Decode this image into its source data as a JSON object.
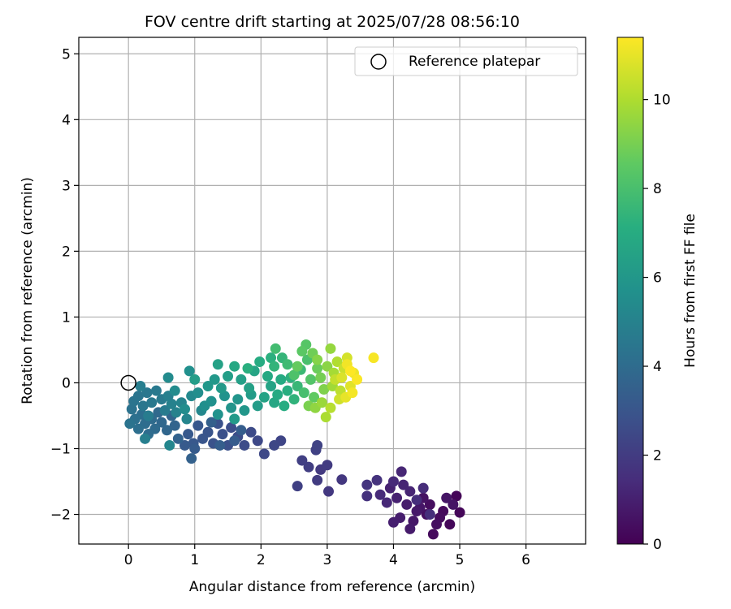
{
  "chart_data": {
    "type": "scatter",
    "title": "FOV centre drift starting at 2025/07/28 08:56:10",
    "xlabel": "Angular distance from reference (arcmin)",
    "ylabel": "Rotation from reference (arcmin)",
    "xlim": [
      -0.75,
      6.9
    ],
    "ylim": [
      -2.45,
      5.25
    ],
    "xticks": [
      0,
      1,
      2,
      3,
      4,
      5,
      6
    ],
    "yticks": [
      -2,
      -1,
      0,
      1,
      2,
      3,
      4,
      5
    ],
    "grid": true,
    "legend": {
      "placement": "top-right",
      "entries": [
        "Reference platepar"
      ]
    },
    "reference_point": {
      "x": 0,
      "y": 0,
      "label": "Reference platepar"
    },
    "colorbar": {
      "label": "Hours from first FF file",
      "colormap": "viridis",
      "range": [
        0,
        11.4
      ],
      "ticks": [
        0,
        2,
        4,
        6,
        8,
        10
      ]
    },
    "points": [
      {
        "x": 4.95,
        "y": -1.72,
        "h": 0.1
      },
      {
        "x": 5.0,
        "y": -1.97,
        "h": 0.15
      },
      {
        "x": 4.85,
        "y": -2.15,
        "h": 0.2
      },
      {
        "x": 4.75,
        "y": -1.95,
        "h": 0.25
      },
      {
        "x": 4.6,
        "y": -2.3,
        "h": 0.3
      },
      {
        "x": 4.7,
        "y": -2.05,
        "h": 0.35
      },
      {
        "x": 4.55,
        "y": -1.85,
        "h": 0.4
      },
      {
        "x": 4.65,
        "y": -2.15,
        "h": 0.45
      },
      {
        "x": 4.5,
        "y": -2.0,
        "h": 0.5
      },
      {
        "x": 4.45,
        "y": -1.75,
        "h": 0.55
      },
      {
        "x": 4.9,
        "y": -1.85,
        "h": 0.6
      },
      {
        "x": 4.8,
        "y": -1.75,
        "h": 0.65
      },
      {
        "x": 4.4,
        "y": -1.9,
        "h": 0.7
      },
      {
        "x": 4.3,
        "y": -2.1,
        "h": 0.75
      },
      {
        "x": 4.35,
        "y": -1.95,
        "h": 0.8
      },
      {
        "x": 4.25,
        "y": -2.22,
        "h": 0.85
      },
      {
        "x": 4.2,
        "y": -1.85,
        "h": 0.9
      },
      {
        "x": 4.1,
        "y": -2.05,
        "h": 0.95
      },
      {
        "x": 4.0,
        "y": -2.12,
        "h": 1.0
      },
      {
        "x": 4.05,
        "y": -1.75,
        "h": 1.05
      },
      {
        "x": 3.95,
        "y": -1.6,
        "h": 1.1
      },
      {
        "x": 4.15,
        "y": -1.55,
        "h": 1.15
      },
      {
        "x": 4.25,
        "y": -1.65,
        "h": 1.2
      },
      {
        "x": 4.12,
        "y": -1.35,
        "h": 1.25
      },
      {
        "x": 3.9,
        "y": -1.82,
        "h": 1.3
      },
      {
        "x": 4.0,
        "y": -1.5,
        "h": 1.35
      },
      {
        "x": 3.8,
        "y": -1.7,
        "h": 1.4
      },
      {
        "x": 4.45,
        "y": -1.6,
        "h": 1.45
      },
      {
        "x": 4.35,
        "y": -1.78,
        "h": 1.5
      },
      {
        "x": 4.55,
        "y": -2.0,
        "h": 1.55
      },
      {
        "x": 3.6,
        "y": -1.72,
        "h": 1.65
      },
      {
        "x": 3.75,
        "y": -1.48,
        "h": 1.7
      },
      {
        "x": 3.6,
        "y": -1.55,
        "h": 1.75
      },
      {
        "x": 3.22,
        "y": -1.47,
        "h": 1.85
      },
      {
        "x": 3.02,
        "y": -1.65,
        "h": 1.9
      },
      {
        "x": 2.9,
        "y": -1.32,
        "h": 1.95
      },
      {
        "x": 3.0,
        "y": -1.25,
        "h": 2.0
      },
      {
        "x": 2.85,
        "y": -1.48,
        "h": 2.05
      },
      {
        "x": 2.72,
        "y": -1.28,
        "h": 2.1
      },
      {
        "x": 2.62,
        "y": -1.18,
        "h": 2.15
      },
      {
        "x": 2.55,
        "y": -1.57,
        "h": 2.2
      },
      {
        "x": 2.83,
        "y": -1.02,
        "h": 2.25
      },
      {
        "x": 2.85,
        "y": -0.95,
        "h": 2.3
      },
      {
        "x": 2.3,
        "y": -0.88,
        "h": 2.4
      },
      {
        "x": 2.2,
        "y": -0.95,
        "h": 2.45
      },
      {
        "x": 2.05,
        "y": -1.08,
        "h": 2.5
      },
      {
        "x": 1.95,
        "y": -0.88,
        "h": 2.55
      },
      {
        "x": 1.85,
        "y": -0.75,
        "h": 2.6
      },
      {
        "x": 1.75,
        "y": -0.95,
        "h": 2.65
      },
      {
        "x": 1.65,
        "y": -0.82,
        "h": 2.7
      },
      {
        "x": 1.55,
        "y": -0.68,
        "h": 2.75
      },
      {
        "x": 1.5,
        "y": -0.95,
        "h": 2.8
      },
      {
        "x": 1.42,
        "y": -0.78,
        "h": 2.85
      },
      {
        "x": 1.35,
        "y": -0.62,
        "h": 2.9
      },
      {
        "x": 1.28,
        "y": -0.92,
        "h": 2.95
      },
      {
        "x": 1.2,
        "y": -0.75,
        "h": 3.0
      },
      {
        "x": 1.12,
        "y": -0.85,
        "h": 3.05
      },
      {
        "x": 1.05,
        "y": -0.65,
        "h": 3.1
      },
      {
        "x": 0.98,
        "y": -0.92,
        "h": 3.15
      },
      {
        "x": 0.9,
        "y": -0.78,
        "h": 3.2
      },
      {
        "x": 0.85,
        "y": -0.95,
        "h": 3.25
      },
      {
        "x": 1.0,
        "y": -1.0,
        "h": 3.3
      },
      {
        "x": 1.6,
        "y": -0.88,
        "h": 3.35
      },
      {
        "x": 1.7,
        "y": -0.72,
        "h": 3.4
      },
      {
        "x": 1.38,
        "y": -0.95,
        "h": 3.45
      },
      {
        "x": 1.25,
        "y": -0.6,
        "h": 3.5
      },
      {
        "x": 0.95,
        "y": -1.15,
        "h": 3.55
      },
      {
        "x": 0.75,
        "y": -0.85,
        "h": 3.6
      },
      {
        "x": 0.7,
        "y": -0.65,
        "h": 3.7
      },
      {
        "x": 0.65,
        "y": -0.5,
        "h": 3.75
      },
      {
        "x": 0.58,
        "y": -0.72,
        "h": 3.8
      },
      {
        "x": 0.5,
        "y": -0.6,
        "h": 3.85
      },
      {
        "x": 0.45,
        "y": -0.45,
        "h": 3.9
      },
      {
        "x": 0.4,
        "y": -0.7,
        "h": 3.95
      },
      {
        "x": 0.35,
        "y": -0.55,
        "h": 4.0
      },
      {
        "x": 0.3,
        "y": -0.78,
        "h": 4.05
      },
      {
        "x": 0.25,
        "y": -0.62,
        "h": 4.1
      },
      {
        "x": 0.2,
        "y": -0.48,
        "h": 4.15
      },
      {
        "x": 0.15,
        "y": -0.7,
        "h": 4.2
      },
      {
        "x": 0.1,
        "y": -0.55,
        "h": 4.25
      },
      {
        "x": 0.05,
        "y": -0.4,
        "h": 4.3
      },
      {
        "x": 0.02,
        "y": -0.62,
        "h": 4.35
      },
      {
        "x": 0.08,
        "y": -0.28,
        "h": 4.4
      },
      {
        "x": 0.15,
        "y": -0.2,
        "h": 4.45
      },
      {
        "x": 0.22,
        "y": -0.35,
        "h": 4.5
      },
      {
        "x": 0.28,
        "y": -0.15,
        "h": 4.55
      },
      {
        "x": 0.35,
        "y": -0.3,
        "h": 4.6
      },
      {
        "x": 0.42,
        "y": -0.12,
        "h": 4.65
      },
      {
        "x": 0.5,
        "y": -0.25,
        "h": 4.7
      },
      {
        "x": 0.55,
        "y": -0.42,
        "h": 4.75
      },
      {
        "x": 0.3,
        "y": -0.5,
        "h": 4.8
      },
      {
        "x": 0.18,
        "y": -0.05,
        "h": 4.85
      },
      {
        "x": 0.25,
        "y": -0.85,
        "h": 4.9
      },
      {
        "x": 0.6,
        "y": -0.2,
        "h": 4.95
      },
      {
        "x": 0.65,
        "y": -0.32,
        "h": 5.0
      },
      {
        "x": 0.72,
        "y": -0.45,
        "h": 5.05
      },
      {
        "x": 0.8,
        "y": -0.3,
        "h": 5.15
      },
      {
        "x": 0.88,
        "y": -0.55,
        "h": 5.2
      },
      {
        "x": 0.62,
        "y": -0.95,
        "h": 5.25
      },
      {
        "x": 1.1,
        "y": -0.42,
        "h": 5.3
      },
      {
        "x": 0.95,
        "y": -0.2,
        "h": 5.4
      },
      {
        "x": 0.6,
        "y": 0.08,
        "h": 5.45
      },
      {
        "x": 0.7,
        "y": -0.12,
        "h": 5.5
      },
      {
        "x": 0.85,
        "y": -0.4,
        "h": 5.55
      },
      {
        "x": 1.05,
        "y": -0.15,
        "h": 5.6
      },
      {
        "x": 1.15,
        "y": -0.35,
        "h": 5.65
      },
      {
        "x": 0.92,
        "y": 0.18,
        "h": 5.7
      },
      {
        "x": 1.25,
        "y": -0.28,
        "h": 5.75
      },
      {
        "x": 1.35,
        "y": -0.48,
        "h": 5.8
      },
      {
        "x": 1.45,
        "y": -0.2,
        "h": 5.85
      },
      {
        "x": 1.55,
        "y": -0.38,
        "h": 5.9
      },
      {
        "x": 1.65,
        "y": -0.25,
        "h": 5.95
      },
      {
        "x": 1.75,
        "y": -0.42,
        "h": 6.0
      },
      {
        "x": 1.2,
        "y": -0.05,
        "h": 6.05
      },
      {
        "x": 1.3,
        "y": 0.05,
        "h": 6.1
      },
      {
        "x": 1.4,
        "y": -0.08,
        "h": 6.15
      },
      {
        "x": 1.6,
        "y": -0.55,
        "h": 6.2
      },
      {
        "x": 1.85,
        "y": -0.18,
        "h": 6.25
      },
      {
        "x": 1.95,
        "y": -0.35,
        "h": 6.3
      },
      {
        "x": 1.0,
        "y": 0.05,
        "h": 6.35
      },
      {
        "x": 1.5,
        "y": 0.1,
        "h": 6.4
      },
      {
        "x": 1.7,
        "y": 0.05,
        "h": 6.45
      },
      {
        "x": 1.82,
        "y": -0.08,
        "h": 6.5
      },
      {
        "x": 1.35,
        "y": 0.28,
        "h": 6.55
      },
      {
        "x": 2.05,
        "y": -0.22,
        "h": 6.6
      },
      {
        "x": 2.15,
        "y": -0.05,
        "h": 6.65
      },
      {
        "x": 1.9,
        "y": 0.18,
        "h": 6.7
      },
      {
        "x": 2.2,
        "y": -0.3,
        "h": 6.8
      },
      {
        "x": 1.6,
        "y": 0.25,
        "h": 6.85
      },
      {
        "x": 2.1,
        "y": 0.1,
        "h": 6.9
      },
      {
        "x": 2.25,
        "y": -0.18,
        "h": 6.95
      },
      {
        "x": 2.3,
        "y": 0.05,
        "h": 7.0
      },
      {
        "x": 1.98,
        "y": 0.32,
        "h": 7.05
      },
      {
        "x": 2.35,
        "y": -0.35,
        "h": 7.1
      },
      {
        "x": 2.4,
        "y": -0.12,
        "h": 7.15
      },
      {
        "x": 1.8,
        "y": 0.22,
        "h": 7.2
      },
      {
        "x": 2.15,
        "y": 0.38,
        "h": 7.25
      },
      {
        "x": 2.45,
        "y": 0.08,
        "h": 7.3
      },
      {
        "x": 2.5,
        "y": -0.25,
        "h": 7.4
      },
      {
        "x": 2.2,
        "y": 0.25,
        "h": 7.45
      },
      {
        "x": 2.32,
        "y": 0.38,
        "h": 7.5
      },
      {
        "x": 2.55,
        "y": -0.05,
        "h": 7.6
      },
      {
        "x": 2.6,
        "y": 0.2,
        "h": 7.7
      },
      {
        "x": 2.4,
        "y": 0.28,
        "h": 7.8
      },
      {
        "x": 2.22,
        "y": 0.52,
        "h": 7.9
      },
      {
        "x": 2.65,
        "y": -0.15,
        "h": 8.0
      },
      {
        "x": 2.7,
        "y": 0.35,
        "h": 8.1
      },
      {
        "x": 2.5,
        "y": 0.12,
        "h": 8.2
      },
      {
        "x": 2.75,
        "y": 0.05,
        "h": 8.3
      },
      {
        "x": 2.68,
        "y": 0.58,
        "h": 8.4
      },
      {
        "x": 2.62,
        "y": 0.48,
        "h": 8.5
      },
      {
        "x": 2.8,
        "y": -0.22,
        "h": 8.6
      },
      {
        "x": 2.55,
        "y": 0.25,
        "h": 8.7
      },
      {
        "x": 2.85,
        "y": 0.22,
        "h": 8.8
      },
      {
        "x": 2.78,
        "y": 0.45,
        "h": 8.9
      },
      {
        "x": 2.9,
        "y": 0.08,
        "h": 9.0
      },
      {
        "x": 2.72,
        "y": -0.35,
        "h": 9.1
      },
      {
        "x": 2.95,
        "y": -0.1,
        "h": 9.2
      },
      {
        "x": 2.85,
        "y": 0.35,
        "h": 9.3
      },
      {
        "x": 3.0,
        "y": 0.25,
        "h": 9.4
      },
      {
        "x": 2.82,
        "y": -0.38,
        "h": 9.5
      },
      {
        "x": 3.05,
        "y": 0.52,
        "h": 9.6
      },
      {
        "x": 2.92,
        "y": -0.3,
        "h": 9.7
      },
      {
        "x": 3.08,
        "y": -0.05,
        "h": 9.8
      },
      {
        "x": 3.1,
        "y": 0.15,
        "h": 9.9
      },
      {
        "x": 2.98,
        "y": -0.52,
        "h": 10.0
      },
      {
        "x": 3.15,
        "y": 0.32,
        "h": 10.1
      },
      {
        "x": 3.05,
        "y": -0.38,
        "h": 10.2
      },
      {
        "x": 3.2,
        "y": -0.12,
        "h": 10.3
      },
      {
        "x": 3.12,
        "y": 0.05,
        "h": 10.4
      },
      {
        "x": 3.25,
        "y": 0.22,
        "h": 10.5
      },
      {
        "x": 3.18,
        "y": -0.25,
        "h": 10.6
      },
      {
        "x": 3.3,
        "y": 0.38,
        "h": 10.7
      },
      {
        "x": 3.22,
        "y": 0.08,
        "h": 10.8
      },
      {
        "x": 3.35,
        "y": -0.05,
        "h": 10.9
      },
      {
        "x": 3.28,
        "y": -0.22,
        "h": 11.0
      },
      {
        "x": 3.4,
        "y": 0.15,
        "h": 11.1
      },
      {
        "x": 3.3,
        "y": 0.28,
        "h": 11.2
      },
      {
        "x": 3.38,
        "y": -0.15,
        "h": 11.25
      },
      {
        "x": 3.7,
        "y": 0.38,
        "h": 11.3
      },
      {
        "x": 3.45,
        "y": 0.05,
        "h": 11.35
      },
      {
        "x": 3.35,
        "y": 0.18,
        "h": 11.4
      }
    ]
  }
}
